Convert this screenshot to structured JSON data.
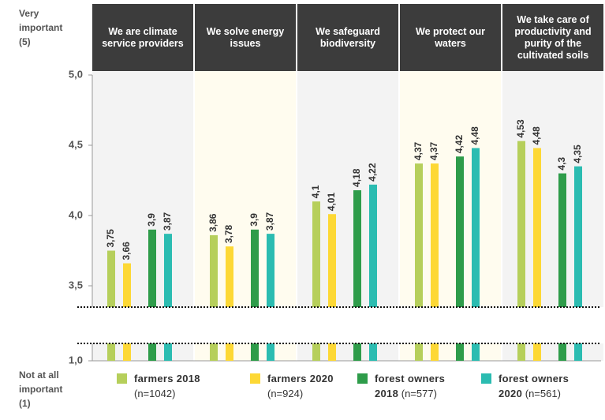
{
  "chart_data": {
    "type": "bar",
    "y_top_label": "Very important (5)",
    "y_bottom_label": "Not at all important (1)",
    "categories": [
      "We are climate service providers",
      "We solve energy issues",
      "We safeguard biodiversity",
      "We protect our waters",
      "We take care of productivity and purity of the cultivated soils"
    ],
    "series": [
      {
        "name": "farmers 2018",
        "note": "(n=1042)",
        "color": "#b6cf5b",
        "values": [
          3.75,
          3.86,
          4.1,
          4.37,
          4.53
        ],
        "value_labels": [
          "3,75",
          "3,86",
          "4,1",
          "4,37",
          "4,53"
        ]
      },
      {
        "name": "farmers 2020",
        "note": "(n=924)",
        "color": "#fdd835",
        "values": [
          3.66,
          3.78,
          4.01,
          4.37,
          4.48
        ],
        "value_labels": [
          "3,66",
          "3,78",
          "4,01",
          "4,37",
          "4,48"
        ]
      },
      {
        "name": "forest owners 2018",
        "note": "(n=577)",
        "color": "#2e9c4a",
        "values": [
          3.9,
          3.9,
          4.18,
          4.42,
          4.3
        ],
        "value_labels": [
          "3,9",
          "3,9",
          "4,18",
          "4,42",
          "4,3"
        ]
      },
      {
        "name": "forest owners 2020",
        "note": "(n=561)",
        "color": "#2bbcb1",
        "values": [
          3.87,
          3.87,
          4.22,
          4.48,
          4.35
        ],
        "value_labels": [
          "3,87",
          "3,87",
          "4,22",
          "4,48",
          "4,35"
        ]
      }
    ],
    "ylim": [
      1,
      5
    ],
    "yticks": [
      {
        "value": 5,
        "label": "5,0"
      },
      {
        "value": 4.5,
        "label": "4,5"
      },
      {
        "value": 4,
        "label": "4,0"
      },
      {
        "value": 3.5,
        "label": "3,5"
      },
      {
        "value": 1,
        "label": "1,0"
      }
    ],
    "axis_break": true
  }
}
